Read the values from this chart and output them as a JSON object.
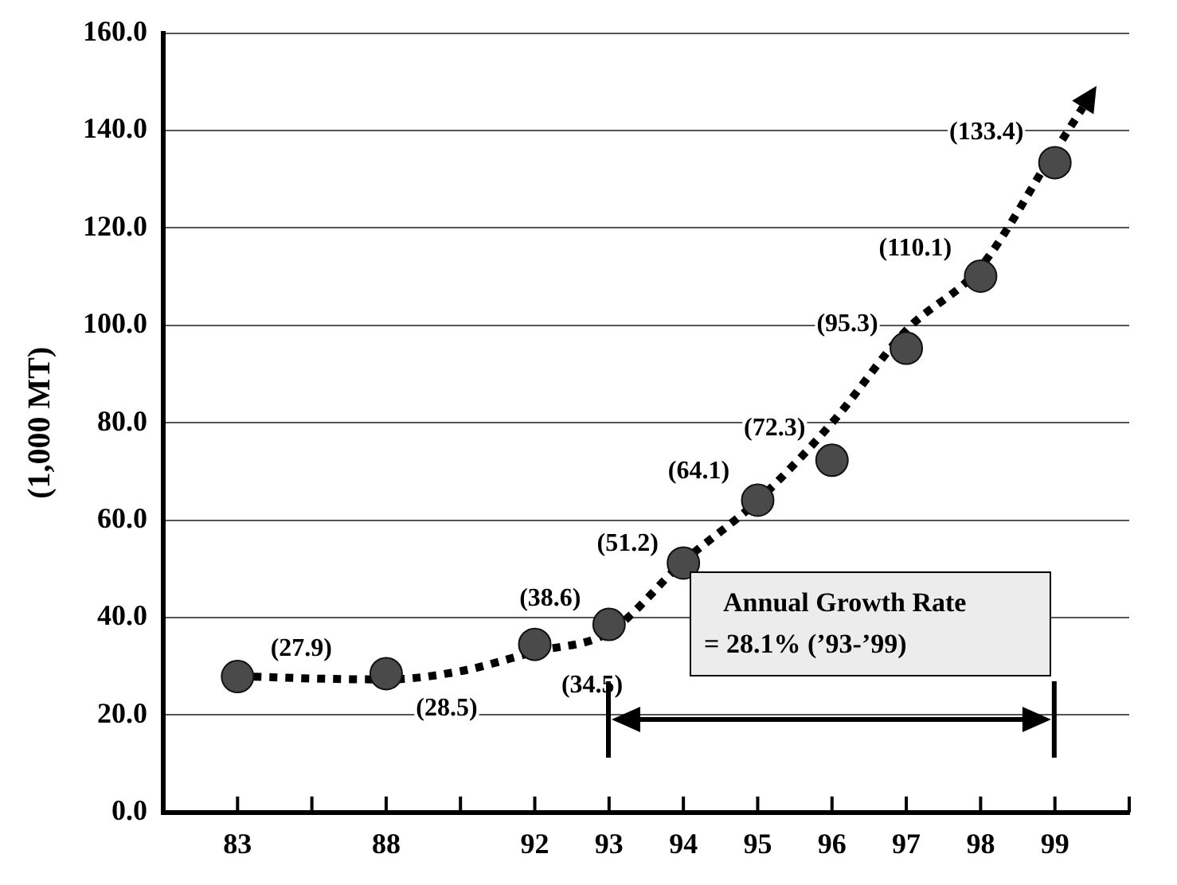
{
  "chart_data": {
    "type": "scatter",
    "ylabel": "(1,000 MT)",
    "categories": [
      null,
      "83",
      null,
      "88",
      null,
      "92",
      "93",
      "94",
      "95",
      "96",
      "97",
      "98",
      "99",
      null
    ],
    "series": [
      {
        "color": "#4a4a4a",
        "values": [
          null,
          27.9,
          null,
          28.5,
          null,
          34.5,
          38.6,
          51.2,
          64.1,
          72.3,
          95.3,
          110.1,
          133.4,
          null
        ],
        "value_labels": [
          null,
          "(27.9)",
          null,
          "(28.5)",
          null,
          "(34.5)",
          "(38.6)",
          "(51.2)",
          "(64.1)",
          "(72.3)",
          "(95.3)",
          "(110.1)",
          "(133.4)",
          null
        ]
      },
      {
        "type": "line",
        "color": "#000000",
        "line_style": "dotted",
        "marker": "none",
        "values": [
          null,
          28,
          27.5,
          27.3,
          29,
          33,
          37,
          51.5,
          64,
          80,
          99,
          112,
          136,
          null
        ]
      }
    ],
    "ylim": [
      0,
      160
    ],
    "yticks": [
      {
        "value": 0,
        "label": "0.0"
      },
      {
        "value": 20,
        "label": "20.0"
      },
      {
        "value": 40,
        "label": "40.0"
      },
      {
        "value": 60,
        "label": "60.0"
      },
      {
        "value": 80,
        "label": "80.0"
      },
      {
        "value": 100,
        "label": "100.0"
      },
      {
        "value": 120,
        "label": "120.0"
      },
      {
        "value": 140,
        "label": "140.0"
      },
      {
        "value": 160,
        "label": "160.0"
      }
    ],
    "grid": "y",
    "legend": false,
    "marker": "circle",
    "annotations": [
      "Annual Growth Rate",
      "= 28.1% (’93-’99)"
    ]
  }
}
